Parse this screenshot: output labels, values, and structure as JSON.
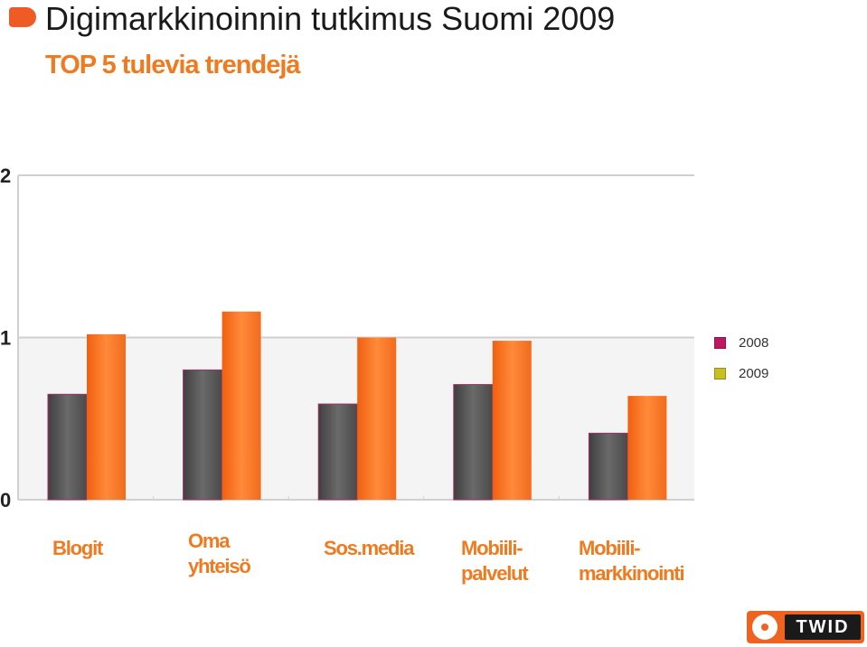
{
  "header": {
    "title": "Digimarkkinoinnin tutkimus Suomi 2009",
    "subtitle": "TOP 5 tulevia trendejä"
  },
  "legend": [
    {
      "label": "2008",
      "color": "#c01860"
    },
    {
      "label": "2009",
      "color": "#c8c020"
    }
  ],
  "chart_data": {
    "type": "bar",
    "categories": [
      "Blogit",
      "Oma\nyhteisö",
      "Sos.media",
      "Mobiili-\npalvelut",
      "Mobiili-\nmarkkinointi"
    ],
    "series": [
      {
        "name": "2008",
        "values": [
          0.65,
          0.8,
          0.59,
          0.71,
          0.41
        ],
        "color": "#595959"
      },
      {
        "name": "2009",
        "values": [
          1.02,
          1.16,
          1.0,
          0.98,
          0.64
        ],
        "color": "#f26b1d"
      }
    ],
    "y_ticks": [
      "0",
      "1",
      "2"
    ],
    "ylim": [
      0,
      2
    ],
    "grid": true,
    "legend_position": "right"
  },
  "logo": {
    "text": "TWID"
  }
}
